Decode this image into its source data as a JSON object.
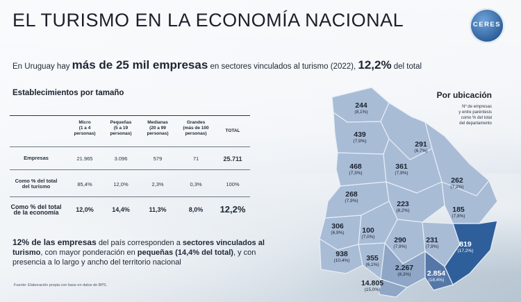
{
  "header": {
    "title": "EL TURISMO EN LA ECONOMÍA NACIONAL",
    "logo_text": "CERES"
  },
  "headline": {
    "prefix": "En Uruguay hay",
    "highlight": "más de 25 mil empresas",
    "middle": "en sectores vinculados al turismo (2022),",
    "pct": "12,2%",
    "suffix": "del total"
  },
  "table": {
    "title": "Establecimientos por tamaño",
    "columns": [
      {
        "name": "Micro",
        "sub": "(1 a 4",
        "sub2": "personas)"
      },
      {
        "name": "Pequeñas",
        "sub": "(5 a 19",
        "sub2": "personas)"
      },
      {
        "name": "Medianas",
        "sub": "(20 a 99",
        "sub2": "personas)"
      },
      {
        "name": "Grandes",
        "sub": "(más de 100",
        "sub2": "personas)"
      }
    ],
    "total_header": "TOTAL",
    "rows": [
      {
        "label1": "Empresas",
        "label2": "",
        "values": [
          "21.965",
          "3.096",
          "579",
          "71"
        ],
        "total": "25.711"
      },
      {
        "label1": "Como % del total",
        "label2": "del turismo",
        "values": [
          "85,4%",
          "12,0%",
          "2,3%",
          "0,3%"
        ],
        "total": "100%"
      },
      {
        "label1": "Como % del total",
        "label2": "de la economía",
        "values": [
          "12,0%",
          "14,4%",
          "11,3%",
          "8,0%"
        ],
        "total": "12,2%"
      }
    ]
  },
  "summary": {
    "p1": "12% de las empresas",
    "p2": "del país corresponden a",
    "p3": "sectores vinculados al turismo",
    "p4": ", con mayor ponderación en",
    "p5": "pequeñas (14,4% del total)",
    "p6": ", y con presencia a lo largo y ancho del territorio nacional"
  },
  "source": "Fuente: Elaboración propia con base en datos de BPS.",
  "map": {
    "title": "Por ubicación",
    "subtitle_lines": [
      "Nº de empresas",
      "y entre paréntesis",
      "como % del total",
      "del departamento"
    ],
    "departments": [
      {
        "id": "artigas",
        "n": "244",
        "p": "(8,1%)"
      },
      {
        "id": "salto",
        "n": "439",
        "p": "(7,9%)"
      },
      {
        "id": "rivera",
        "n": "291",
        "p": "(6,7%)"
      },
      {
        "id": "paysandu",
        "n": "468",
        "p": "(7,3%)"
      },
      {
        "id": "tacuarembo",
        "n": "361",
        "p": "(7,9%)"
      },
      {
        "id": "cerro-largo",
        "n": "262",
        "p": "(7,2%)"
      },
      {
        "id": "rio-negro",
        "n": "268",
        "p": "(7,9%)"
      },
      {
        "id": "durazno",
        "n": "223",
        "p": "(8,2%)"
      },
      {
        "id": "treinta-y-tres",
        "n": "185",
        "p": "(7,8%)"
      },
      {
        "id": "soriano",
        "n": "306",
        "p": "(6,9%)"
      },
      {
        "id": "flores",
        "n": "100",
        "p": "(7,0%)"
      },
      {
        "id": "florida",
        "n": "290",
        "p": "(7,9%)"
      },
      {
        "id": "lavalleja",
        "n": "231",
        "p": "(7,9%)"
      },
      {
        "id": "rocha",
        "n": "819",
        "p": "(17,2%)"
      },
      {
        "id": "colonia",
        "n": "938",
        "p": "(10,4%)"
      },
      {
        "id": "san-jose",
        "n": "355",
        "p": "(6,1%)"
      },
      {
        "id": "canelones",
        "n": "2.267",
        "p": "(8,3%)"
      },
      {
        "id": "maldonado",
        "n": "2.854",
        "p": "(18,4%)"
      },
      {
        "id": "montevideo",
        "n": "14.805",
        "p": "(15,0%)"
      }
    ],
    "colors": {
      "base": "#a9bcd6",
      "dark": "#2f5f9a",
      "mid": "#5577a8"
    }
  }
}
